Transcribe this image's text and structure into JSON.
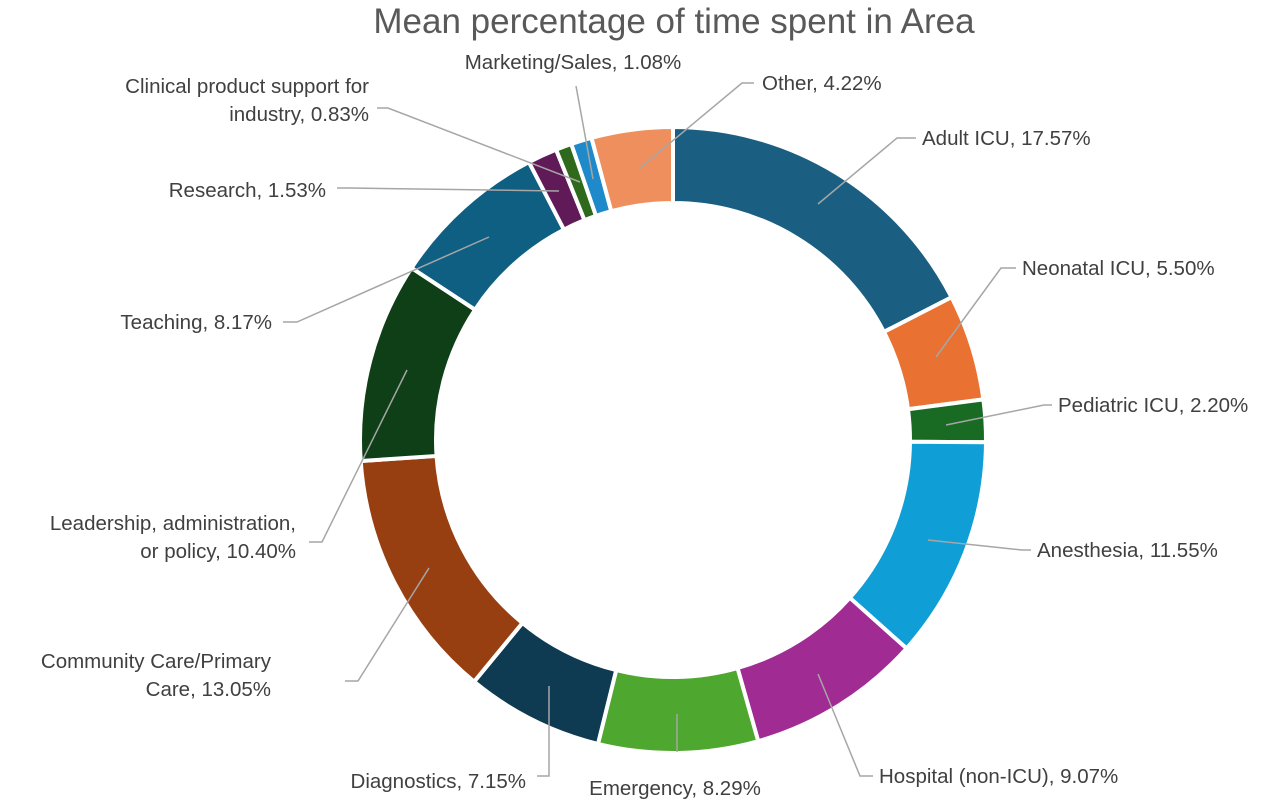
{
  "chart_data": {
    "type": "donut",
    "title": "Mean percentage of time spent in Area",
    "start_angle_deg": 0,
    "direction": "clockwise",
    "slices": [
      {
        "label": [
          "Adult ICU, 17.57%"
        ],
        "value": 17.57,
        "color": "#1a5e82"
      },
      {
        "label": [
          "Neonatal ICU, 5.50%"
        ],
        "value": 5.5,
        "color": "#e97132"
      },
      {
        "label": [
          "Pediatric ICU, 2.20%"
        ],
        "value": 2.2,
        "color": "#196b24"
      },
      {
        "label": [
          "Anesthesia, 11.55%"
        ],
        "value": 11.55,
        "color": "#0f9ed5"
      },
      {
        "label": [
          "Hospital (non-ICU), 9.07%"
        ],
        "value": 9.07,
        "color": "#a02b93"
      },
      {
        "label": [
          "Emergency, 8.29%"
        ],
        "value": 8.29,
        "color": "#4ea72e"
      },
      {
        "label": [
          "Diagnostics, 7.15%"
        ],
        "value": 7.15,
        "color": "#0e3a52"
      },
      {
        "label": [
          "Community Care/Primary",
          "Care, 13.05%"
        ],
        "value": 13.05,
        "color": "#983f11"
      },
      {
        "label": [
          "Leadership, administration,",
          "or policy, 10.40%"
        ],
        "value": 10.4,
        "color": "#0f3f17"
      },
      {
        "label": [
          "Teaching, 8.17%"
        ],
        "value": 8.17,
        "color": "#0e5f82"
      },
      {
        "label": [
          "Research, 1.53%"
        ],
        "value": 1.53,
        "color": "#5f1a57"
      },
      {
        "label": [
          "Clinical product support for",
          "industry, 0.83%"
        ],
        "value": 0.83,
        "color": "#2f6a1c"
      },
      {
        "label": [
          "Marketing/Sales, 1.08%"
        ],
        "value": 1.08,
        "color": "#1f8ac9"
      },
      {
        "label": [
          "Other, 4.22%"
        ],
        "value": 4.22,
        "color": "#ef8f5e"
      }
    ]
  }
}
